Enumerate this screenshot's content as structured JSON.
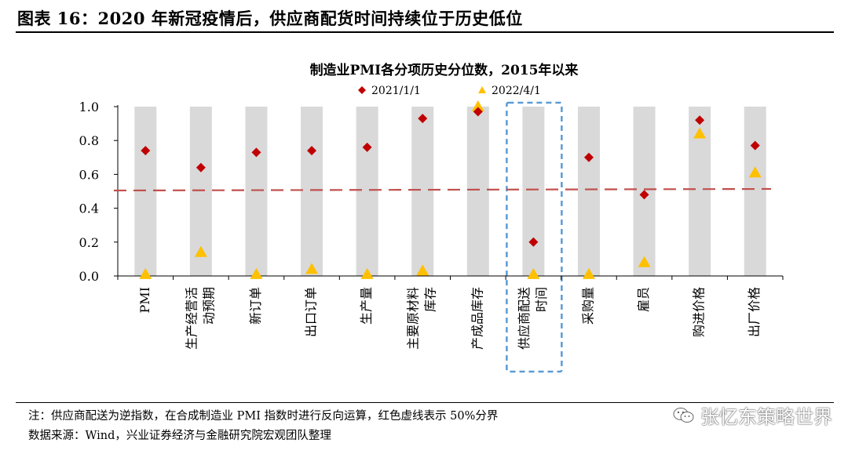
{
  "figure_title": "图表 16：2020 年新冠疫情后，供应商配货时间持续位于历史低位",
  "note": "注：供应商配送为逆指数，在合成制造业 PMI 指数时进行反向运算，红色虚线表示 50%分界",
  "source": "数据来源：Wind，兴业证券经济与金融研究院宏观团队整理",
  "watermark": "张忆东策略世界",
  "colors": {
    "series1": "#C00000",
    "series2": "#FFC000",
    "band": "#D9D9D9",
    "refline": "#C0504D",
    "highlight": "#5B9BD5"
  },
  "chart_data": {
    "type": "scatter",
    "title": "制造业PMI各分项历史分位数，2015年以来",
    "categories": [
      "PMI",
      "生产经营活动预期",
      "新订单",
      "出口订单",
      "生产量",
      "主要原材料库存",
      "产成品库存",
      "供应商配送时间",
      "采购量",
      "雇员",
      "购进价格",
      "出厂价格"
    ],
    "category_lines": [
      [
        "PMI"
      ],
      [
        "生产经营活",
        "动预期"
      ],
      [
        "新订单"
      ],
      [
        "出口订单"
      ],
      [
        "生产量"
      ],
      [
        "主要原材料",
        "库存"
      ],
      [
        "产成品库存"
      ],
      [
        "供应商配送",
        "时间"
      ],
      [
        "采购量"
      ],
      [
        "雇员"
      ],
      [
        "购进价格"
      ],
      [
        "出厂价格"
      ]
    ],
    "series": [
      {
        "name": "2021/1/1",
        "marker": "diamond",
        "values": [
          0.74,
          0.64,
          0.73,
          0.74,
          0.76,
          0.93,
          0.97,
          0.2,
          0.7,
          0.48,
          0.92,
          0.77
        ]
      },
      {
        "name": "2022/4/1",
        "marker": "triangle",
        "values": [
          0.01,
          0.14,
          0.01,
          0.04,
          0.01,
          0.03,
          1.0,
          0.01,
          0.01,
          0.08,
          0.84,
          0.61
        ]
      }
    ],
    "reference_line": {
      "value": 0.5,
      "label": "50%分界",
      "style": "dashed"
    },
    "highlight_category": "供应商配送时间",
    "ylim": [
      0,
      1.0
    ],
    "yticks": [
      "0.0",
      "0.2",
      "0.4",
      "0.6",
      "0.8",
      "1.0"
    ],
    "legend_position": "top-center",
    "xlabel": "",
    "ylabel": ""
  }
}
